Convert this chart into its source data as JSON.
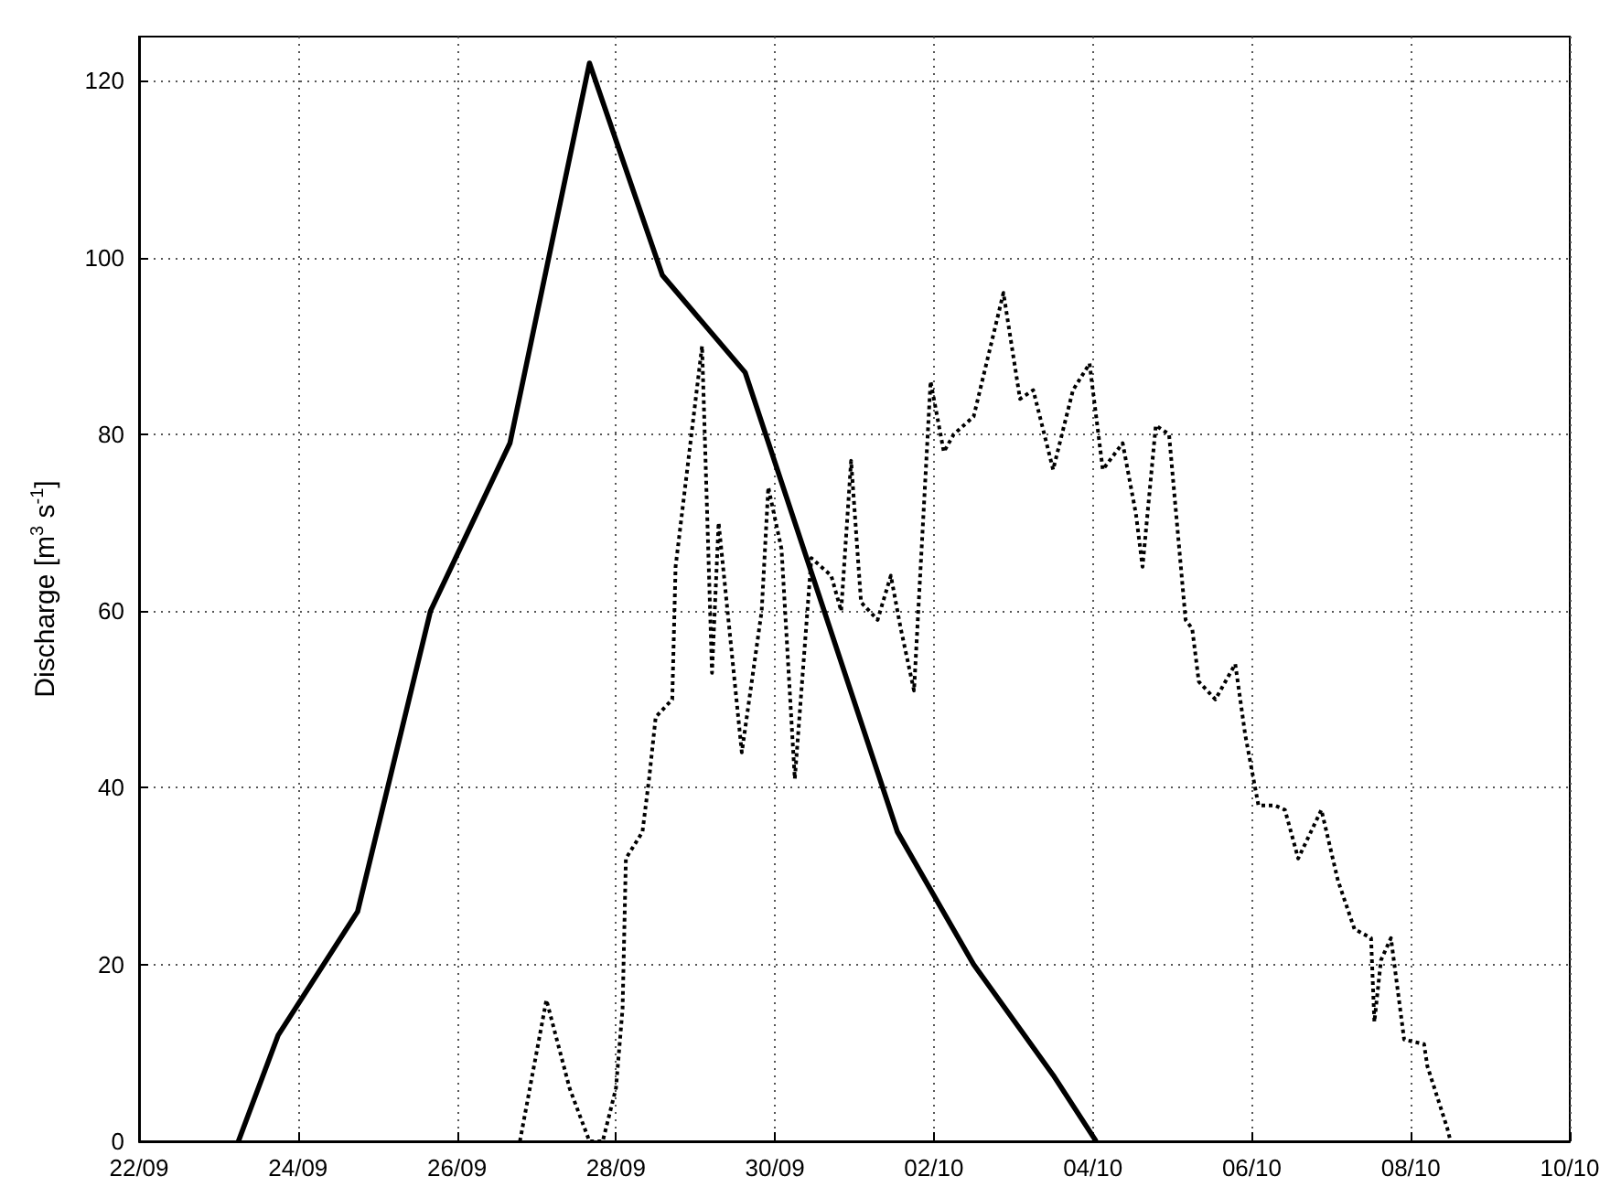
{
  "chart_data": {
    "type": "line",
    "ylabel": "Discharge [m$^{3}$ s$^{-1}$]",
    "xlim": [
      "--09-22",
      "--10-10"
    ],
    "xticks": [
      {
        "value": "--09-22",
        "label": "22/09"
      },
      {
        "value": "--09-24",
        "label": "24/09"
      },
      {
        "value": "--09-26",
        "label": "26/09"
      },
      {
        "value": "--09-28",
        "label": "28/09"
      },
      {
        "value": "--09-30",
        "label": "30/09"
      },
      {
        "value": "--10-02",
        "label": "02/10"
      },
      {
        "value": "--10-04",
        "label": "04/10"
      },
      {
        "value": "--10-06",
        "label": "06/10"
      },
      {
        "value": "--10-08",
        "label": "08/10"
      },
      {
        "value": "--10-10",
        "label": "10/10"
      }
    ],
    "ylim": [
      0,
      125
    ],
    "yticks": [
      0,
      20,
      40,
      60,
      80,
      100,
      120
    ],
    "grid": true,
    "marker": "none",
    "series": [
      {
        "color": "#000000",
        "line_style": "solid",
        "x": [
          "--09-23T06:00",
          "--09-23T18:00",
          "--09-24T18:00",
          "--09-25T16:00",
          "--09-26T16:00",
          "--09-27T16:00",
          "--09-28T14:00",
          "--09-29T15:00",
          "--10-01T13:00",
          "--10-02T12:00",
          "--10-03T12:00",
          "--10-04T01:00"
        ],
        "values": [
          0,
          12,
          26,
          60,
          79,
          122,
          98,
          87,
          35,
          20,
          7.5,
          0
        ]
      },
      {
        "color": "#000000",
        "line_style": "dotted",
        "x": [
          "--09-26T19:00",
          "--09-27T03:00",
          "--09-27T10:00",
          "--09-27T16:00",
          "--09-27T20:00",
          "--09-28T00:00",
          "--09-28T02:00",
          "--09-28T03:00",
          "--09-28T08:00",
          "--09-28T10:00",
          "--09-28T12:00",
          "--09-28T17:00",
          "--09-28T18:00",
          "--09-29T02:00",
          "--09-29T05:00",
          "--09-29T07:00",
          "--09-29T14:00",
          "--09-29T20:00",
          "--09-29T22:00",
          "--09-30T02:00",
          "--09-30T06:00",
          "--09-30T11:00",
          "--09-30T17:00",
          "--09-30T20:00",
          "--09-30T23:00",
          "--10-01T02:00",
          "--10-01T07:00",
          "--10-01T11:00",
          "--10-01T14:00",
          "--10-01T18:00",
          "--10-01T23:00",
          "--10-02T03:00",
          "--10-02T06:00",
          "--10-02T12:00",
          "--10-02T21:00",
          "--10-03T02:00",
          "--10-03T06:00",
          "--10-03T12:00",
          "--10-03T18:00",
          "--10-03T23:00",
          "--10-04T03:00",
          "--10-04T09:00",
          "--10-04T13:00",
          "--10-04T15:00",
          "--10-04T19:00",
          "--10-04T23:00",
          "--10-05T04:00",
          "--10-05T06:00",
          "--10-05T08:00",
          "--10-05T13:00",
          "--10-05T19:00",
          "--10-05T22:00",
          "--10-06T02:00",
          "--10-06T07:00",
          "--10-06T10:00",
          "--10-06T14:00",
          "--10-06T21:00",
          "--10-07T02:00",
          "--10-07T07:00",
          "--10-07T12:00",
          "--10-07T13:00",
          "--10-07T15:00",
          "--10-07T18:00",
          "--10-07T22:00",
          "--10-08T04:00",
          "--10-08T05:00",
          "--10-08T11:00",
          "--10-08T12:00"
        ],
        "values": [
          0,
          16,
          6,
          0,
          0,
          6,
          15,
          32,
          35,
          41,
          48,
          50,
          65,
          90,
          53,
          70,
          44,
          60,
          74,
          67,
          41,
          66,
          64,
          60,
          77,
          61,
          59,
          64,
          58,
          51,
          86,
          78,
          80,
          82,
          96,
          84,
          85,
          76,
          85,
          88,
          76,
          79,
          71,
          65,
          81,
          80,
          59,
          58,
          52,
          50,
          54,
          46,
          38,
          38,
          37.5,
          32,
          37.5,
          29.5,
          24,
          23,
          13.5,
          20.5,
          23,
          11.5,
          11,
          8.5,
          1.5,
          0
        ]
      }
    ]
  }
}
